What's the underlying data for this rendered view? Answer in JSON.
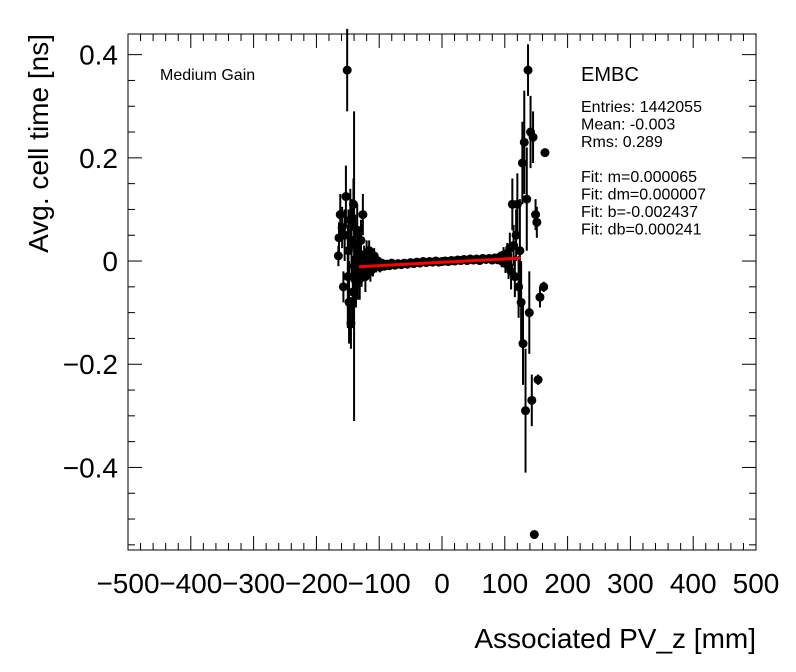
{
  "chart_data": {
    "type": "scatter",
    "xlabel": "Associated PV_z [mm]",
    "ylabel": "Avg. cell time [ns]",
    "xlim": [
      -500,
      500
    ],
    "ylim": [
      -0.56,
      0.44
    ],
    "x_ticks": [
      -500,
      -400,
      -300,
      -200,
      -100,
      0,
      100,
      200,
      300,
      400,
      500
    ],
    "x_tick_labels": [
      "−500",
      "−400",
      "−300",
      "−200",
      "−100",
      "0",
      "100",
      "200",
      "300",
      "400",
      "500"
    ],
    "y_ticks": [
      -0.4,
      -0.2,
      0,
      0.2,
      0.4
    ],
    "y_tick_labels": [
      "−0.4",
      "−0.2",
      "0",
      "0.2",
      "0.4"
    ],
    "grid": false,
    "annotations": {
      "gain": "Medium Gain",
      "detector": "EMBC"
    },
    "stats": [
      "Entries: 1442055",
      "Mean: -0.003",
      "Rms: 0.289",
      "",
      "Fit: m=0.000065",
      "Fit: dm=0.000007",
      "Fit: b=-0.002437",
      "Fit: db=0.000241"
    ],
    "fit_line": {
      "x": [
        -132,
        125
      ],
      "y": [
        -0.011,
        0.0056
      ],
      "color": "#ff0000"
    },
    "marker_color": "#000000",
    "points": [
      {
        "x": -165,
        "y": 0.01,
        "err": 0.02
      },
      {
        "x": -164,
        "y": 0.045,
        "err": 0.03
      },
      {
        "x": -162,
        "y": 0.09,
        "err": 0.04
      },
      {
        "x": -159,
        "y": 0.065,
        "err": 0.04
      },
      {
        "x": -157,
        "y": -0.05,
        "err": 0.03
      },
      {
        "x": -155,
        "y": 0.05,
        "err": 0.05
      },
      {
        "x": -153,
        "y": 0.125,
        "err": 0.06
      },
      {
        "x": -151,
        "y": 0.37,
        "err": 0.08
      },
      {
        "x": -150,
        "y": -0.03,
        "err": 0.1
      },
      {
        "x": -149,
        "y": 0.02,
        "err": 0.08
      },
      {
        "x": -148,
        "y": -0.08,
        "err": 0.08
      },
      {
        "x": -146,
        "y": 0.08,
        "err": 0.06
      },
      {
        "x": -145,
        "y": -0.12,
        "err": 0.05
      },
      {
        "x": -144,
        "y": 0.04,
        "err": 0.08
      },
      {
        "x": -142,
        "y": -0.06,
        "err": 0.07
      },
      {
        "x": -141,
        "y": 0.11,
        "err": 0.05
      },
      {
        "x": -140,
        "y": -0.01,
        "err": 0.3
      },
      {
        "x": -138,
        "y": 0.03,
        "err": 0.06
      },
      {
        "x": -137,
        "y": -0.04,
        "err": 0.05
      },
      {
        "x": -135,
        "y": 0.06,
        "err": 0.05
      },
      {
        "x": -134,
        "y": -0.025,
        "err": 0.05
      },
      {
        "x": -132,
        "y": 0.015,
        "err": 0.04
      },
      {
        "x": -131,
        "y": -0.035,
        "err": 0.04
      },
      {
        "x": -129,
        "y": 0.04,
        "err": 0.04
      },
      {
        "x": -128,
        "y": -0.02,
        "err": 0.03
      },
      {
        "x": -126,
        "y": 0.09,
        "err": 0.04
      },
      {
        "x": -124,
        "y": 0.0,
        "err": 0.03
      },
      {
        "x": -122,
        "y": -0.03,
        "err": 0.03
      },
      {
        "x": -120,
        "y": 0.01,
        "err": 0.03
      },
      {
        "x": -118,
        "y": -0.01,
        "err": 0.025
      },
      {
        "x": -116,
        "y": 0.02,
        "err": 0.02
      },
      {
        "x": -114,
        "y": -0.02,
        "err": 0.02
      },
      {
        "x": -112,
        "y": 0.005,
        "err": 0.02
      },
      {
        "x": -110,
        "y": -0.015,
        "err": 0.015
      },
      {
        "x": -108,
        "y": 0.01,
        "err": 0.015
      },
      {
        "x": -105,
        "y": -0.01,
        "err": 0.012
      },
      {
        "x": -102,
        "y": 0.0,
        "err": 0.01
      },
      {
        "x": -99,
        "y": -0.012,
        "err": 0.01
      },
      {
        "x": -96,
        "y": -0.004,
        "err": 0.008
      },
      {
        "x": -92,
        "y": -0.01,
        "err": 0.008
      },
      {
        "x": -88,
        "y": -0.006,
        "err": 0.007
      },
      {
        "x": -84,
        "y": -0.009,
        "err": 0.006
      },
      {
        "x": -80,
        "y": -0.004,
        "err": 0.006
      },
      {
        "x": -75,
        "y": -0.008,
        "err": 0.005
      },
      {
        "x": -70,
        "y": -0.005,
        "err": 0.005
      },
      {
        "x": -65,
        "y": -0.007,
        "err": 0.004
      },
      {
        "x": -60,
        "y": -0.004,
        "err": 0.004
      },
      {
        "x": -55,
        "y": -0.006,
        "err": 0.004
      },
      {
        "x": -50,
        "y": -0.003,
        "err": 0.004
      },
      {
        "x": -45,
        "y": -0.005,
        "err": 0.003
      },
      {
        "x": -40,
        "y": -0.002,
        "err": 0.003
      },
      {
        "x": -35,
        "y": -0.004,
        "err": 0.003
      },
      {
        "x": -30,
        "y": -0.001,
        "err": 0.003
      },
      {
        "x": -25,
        "y": -0.003,
        "err": 0.003
      },
      {
        "x": -20,
        "y": -0.001,
        "err": 0.003
      },
      {
        "x": -15,
        "y": -0.002,
        "err": 0.003
      },
      {
        "x": -10,
        "y": 0.0,
        "err": 0.003
      },
      {
        "x": -5,
        "y": -0.002,
        "err": 0.003
      },
      {
        "x": 0,
        "y": -0.001,
        "err": 0.003
      },
      {
        "x": 5,
        "y": 0.0,
        "err": 0.003
      },
      {
        "x": 10,
        "y": -0.001,
        "err": 0.003
      },
      {
        "x": 15,
        "y": 0.001,
        "err": 0.003
      },
      {
        "x": 20,
        "y": 0.0,
        "err": 0.003
      },
      {
        "x": 25,
        "y": 0.002,
        "err": 0.003
      },
      {
        "x": 30,
        "y": 0.001,
        "err": 0.003
      },
      {
        "x": 35,
        "y": 0.003,
        "err": 0.003
      },
      {
        "x": 40,
        "y": 0.001,
        "err": 0.004
      },
      {
        "x": 45,
        "y": 0.004,
        "err": 0.004
      },
      {
        "x": 50,
        "y": 0.002,
        "err": 0.004
      },
      {
        "x": 55,
        "y": 0.004,
        "err": 0.004
      },
      {
        "x": 60,
        "y": 0.001,
        "err": 0.005
      },
      {
        "x": 65,
        "y": 0.005,
        "err": 0.005
      },
      {
        "x": 70,
        "y": 0.003,
        "err": 0.006
      },
      {
        "x": 75,
        "y": 0.005,
        "err": 0.006
      },
      {
        "x": 80,
        "y": 0.002,
        "err": 0.007
      },
      {
        "x": 84,
        "y": 0.006,
        "err": 0.008
      },
      {
        "x": 88,
        "y": 0.003,
        "err": 0.009
      },
      {
        "x": 92,
        "y": 0.008,
        "err": 0.01
      },
      {
        "x": 95,
        "y": 0.0,
        "err": 0.012
      },
      {
        "x": 98,
        "y": 0.012,
        "err": 0.015
      },
      {
        "x": 101,
        "y": -0.005,
        "err": 0.018
      },
      {
        "x": 104,
        "y": 0.015,
        "err": 0.02
      },
      {
        "x": 106,
        "y": -0.01,
        "err": 0.025
      },
      {
        "x": 108,
        "y": 0.025,
        "err": 0.03
      },
      {
        "x": 110,
        "y": -0.02,
        "err": 0.035
      },
      {
        "x": 112,
        "y": 0.11,
        "err": 0.05
      },
      {
        "x": 114,
        "y": 0.03,
        "err": 0.04
      },
      {
        "x": 116,
        "y": -0.03,
        "err": 0.04
      },
      {
        "x": 118,
        "y": 0.05,
        "err": 0.05
      },
      {
        "x": 120,
        "y": 0.11,
        "err": 0.06
      },
      {
        "x": 122,
        "y": -0.05,
        "err": 0.06
      },
      {
        "x": 124,
        "y": 0.02,
        "err": 0.1
      },
      {
        "x": 126,
        "y": -0.08,
        "err": 0.08
      },
      {
        "x": 128,
        "y": 0.19,
        "err": 0.08
      },
      {
        "x": 129,
        "y": -0.16,
        "err": 0.08
      },
      {
        "x": 131,
        "y": 0.23,
        "err": 0.1
      },
      {
        "x": 133,
        "y": -0.29,
        "err": 0.12
      },
      {
        "x": 135,
        "y": 0.12,
        "err": 0.1
      },
      {
        "x": 137,
        "y": 0.37,
        "err": 0.05
      },
      {
        "x": 139,
        "y": -0.1,
        "err": 0.08
      },
      {
        "x": 141,
        "y": 0.25,
        "err": 0.07
      },
      {
        "x": 143,
        "y": -0.27,
        "err": 0.05
      },
      {
        "x": 145,
        "y": 0.24,
        "err": 0.05
      },
      {
        "x": 147,
        "y": -0.53,
        "err": 0.005
      },
      {
        "x": 149,
        "y": 0.09,
        "err": 0.03
      },
      {
        "x": 151,
        "y": 0.075,
        "err": 0.03
      },
      {
        "x": 153,
        "y": -0.23,
        "err": 0.01
      },
      {
        "x": 156,
        "y": -0.07,
        "err": 0.02
      },
      {
        "x": 162,
        "y": -0.05,
        "err": 0.01
      },
      {
        "x": 164,
        "y": 0.21,
        "err": 0.005
      }
    ]
  }
}
